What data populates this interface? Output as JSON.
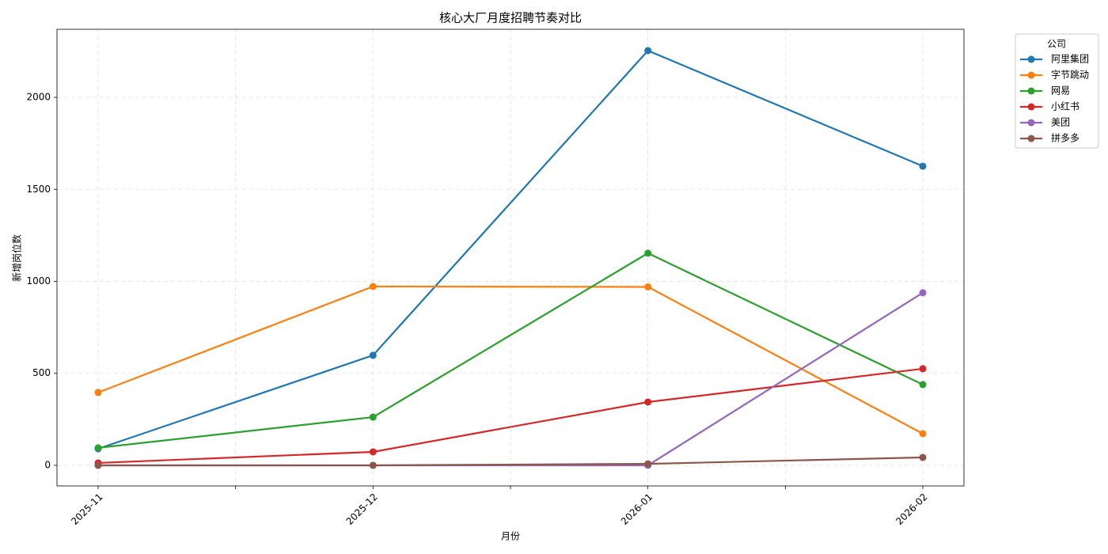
{
  "chart_data": {
    "type": "line",
    "title": "核心大厂月度招聘节奏对比",
    "x_label": "月份",
    "y_label": "新增岗位数",
    "categories": [
      "2025-11",
      "2025-12",
      "2026-01",
      "2026-02"
    ],
    "ylim": [
      -112,
      2370
    ],
    "yticks": [
      0,
      500,
      1000,
      1500,
      2000
    ],
    "grid": true,
    "legend_title": "公司",
    "legend_position": "outside-upper-right",
    "series": [
      {
        "name": "阿里集团",
        "color": "#1f77b4",
        "values": [
          90,
          598,
          2254,
          1626
        ]
      },
      {
        "name": "字节跳动",
        "color": "#ff7f0e",
        "values": [
          396,
          972,
          970,
          172
        ]
      },
      {
        "name": "网易",
        "color": "#2ca02c",
        "values": [
          95,
          262,
          1153,
          439
        ]
      },
      {
        "name": "小红书",
        "color": "#d62728",
        "values": [
          13,
          73,
          344,
          525
        ]
      },
      {
        "name": "美团",
        "color": "#9467bd",
        "values": [
          0,
          0,
          0,
          938
        ]
      },
      {
        "name": "拼多多",
        "color": "#8c564b",
        "values": [
          0,
          0,
          8,
          43
        ]
      }
    ]
  }
}
